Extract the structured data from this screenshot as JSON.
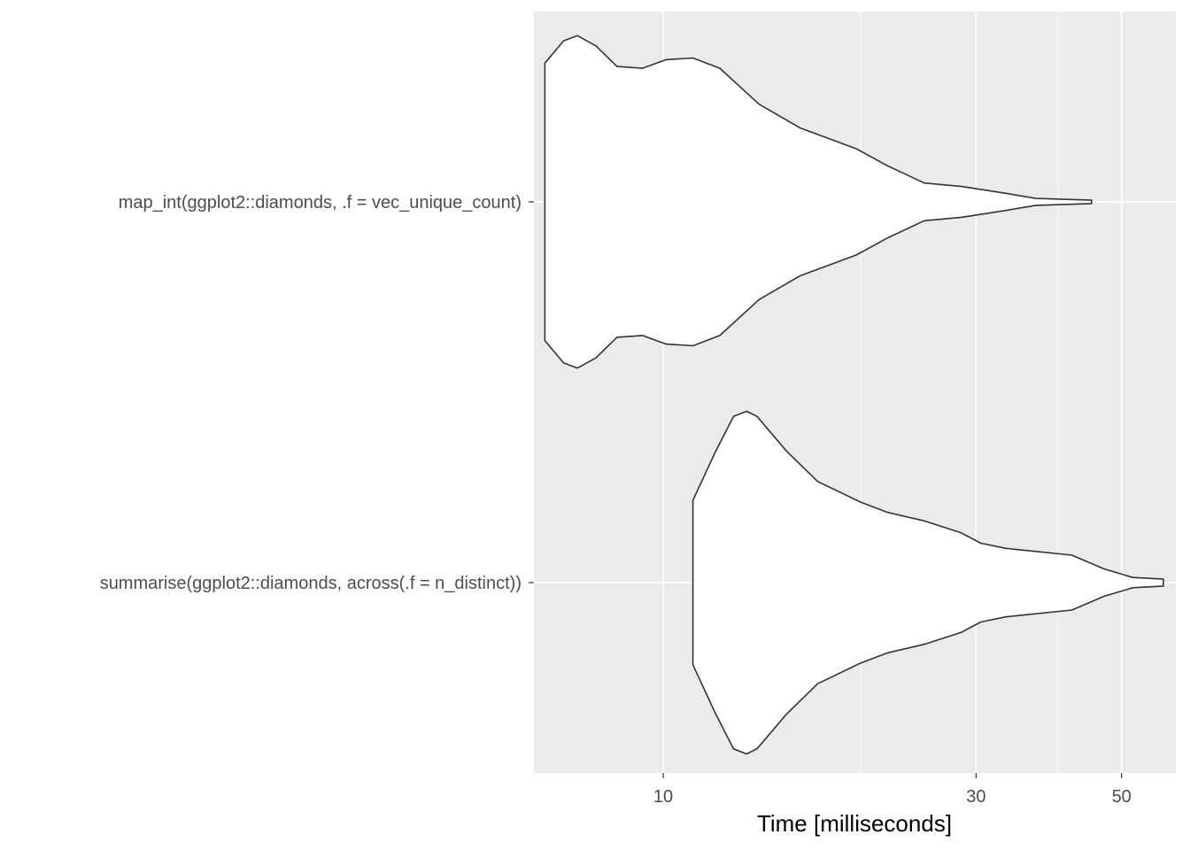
{
  "chart_data": {
    "type": "violin",
    "orientation": "horizontal",
    "xlabel": "Time [milliseconds]",
    "ylabel": "",
    "x_scale": "log10",
    "xlim": [
      6.35,
      60.5
    ],
    "x_ticks": [
      10,
      30,
      50
    ],
    "x_tick_labels": [
      "10",
      "30",
      "50"
    ],
    "x_minor_breaks": [
      20,
      40
    ],
    "grid": true,
    "background": "#ebebeb",
    "grid_color": "#ffffff",
    "outline_color": "#333333",
    "fill_color": "#ffffff",
    "categories": [
      "map_int(ggplot2::diamonds, .f = vec_unique_count)",
      "summarise(ggplot2::diamonds, across(.f = n_distinct))"
    ],
    "series": [
      {
        "category": "map_int(ggplot2::diamonds, .f = vec_unique_count)",
        "min": 6.6,
        "max": 45.0,
        "density": [
          [
            6.6,
            0.81
          ],
          [
            7.05,
            0.94
          ],
          [
            7.4,
            0.97
          ],
          [
            7.9,
            0.91
          ],
          [
            8.5,
            0.79
          ],
          [
            9.3,
            0.78
          ],
          [
            10.1,
            0.83
          ],
          [
            11.1,
            0.84
          ],
          [
            12.2,
            0.78
          ],
          [
            14.0,
            0.57
          ],
          [
            16.2,
            0.43
          ],
          [
            19.7,
            0.31
          ],
          [
            22.0,
            0.21
          ],
          [
            25.0,
            0.11
          ],
          [
            28.5,
            0.09
          ],
          [
            33.3,
            0.05
          ],
          [
            37.0,
            0.02
          ],
          [
            45.0,
            0.01
          ]
        ]
      },
      {
        "category": "summarise(ggplot2::diamonds, across(.f = n_distinct))",
        "min": 11.1,
        "max": 57.9,
        "density": [
          [
            11.1,
            0.48
          ],
          [
            12.0,
            0.76
          ],
          [
            12.8,
            0.97
          ],
          [
            13.4,
            1.0
          ],
          [
            13.9,
            0.97
          ],
          [
            15.4,
            0.77
          ],
          [
            17.2,
            0.59
          ],
          [
            20.0,
            0.47
          ],
          [
            22.0,
            0.41
          ],
          [
            25.0,
            0.36
          ],
          [
            28.5,
            0.29
          ],
          [
            30.5,
            0.23
          ],
          [
            33.3,
            0.2
          ],
          [
            42.0,
            0.16
          ],
          [
            47.0,
            0.08
          ],
          [
            52.0,
            0.03
          ],
          [
            57.9,
            0.02
          ]
        ]
      }
    ]
  }
}
